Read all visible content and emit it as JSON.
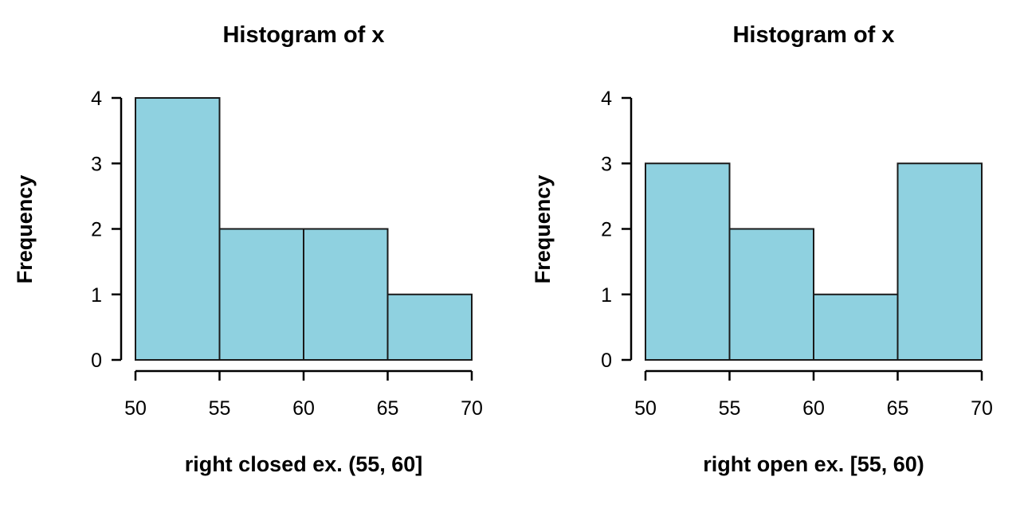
{
  "page": {
    "background": "#ffffff",
    "foreground": "#000000"
  },
  "chart_data": [
    {
      "type": "bar",
      "subtype": "histogram",
      "title": "Histogram of x",
      "xlabel": "right closed ex. (55, 60]",
      "ylabel": "Frequency",
      "bin_edges": [
        50,
        55,
        60,
        65,
        70
      ],
      "categories": [
        "(50,55]",
        "(55,60]",
        "(60,65]",
        "(65,70]"
      ],
      "values": [
        4,
        2,
        2,
        1
      ],
      "x_ticks": [
        50,
        55,
        60,
        65,
        70
      ],
      "y_ticks": [
        0,
        1,
        2,
        3,
        4
      ],
      "xlim": [
        50,
        70
      ],
      "ylim": [
        0,
        4
      ],
      "grid": false,
      "legend": "none",
      "bar_fill": "#8FD1E0",
      "bar_stroke": "#1a1a1a",
      "axis_color": "#000000"
    },
    {
      "type": "bar",
      "subtype": "histogram",
      "title": "Histogram of x",
      "xlabel": "right open ex. [55, 60)",
      "ylabel": "Frequency",
      "bin_edges": [
        50,
        55,
        60,
        65,
        70
      ],
      "categories": [
        "[50,55)",
        "[55,60)",
        "[60,65)",
        "[65,70)"
      ],
      "values": [
        3,
        2,
        1,
        3
      ],
      "x_ticks": [
        50,
        55,
        60,
        65,
        70
      ],
      "y_ticks": [
        0,
        1,
        2,
        3,
        4
      ],
      "xlim": [
        50,
        70
      ],
      "ylim": [
        0,
        4
      ],
      "grid": false,
      "legend": "none",
      "bar_fill": "#8FD1E0",
      "bar_stroke": "#1a1a1a",
      "axis_color": "#000000"
    }
  ]
}
